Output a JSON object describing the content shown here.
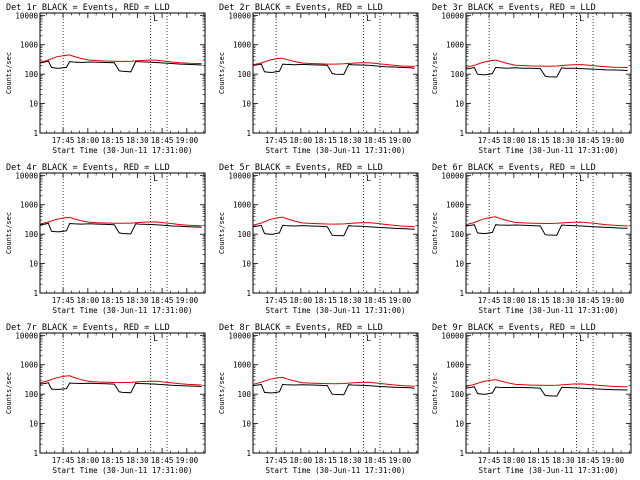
{
  "colors": {
    "events": "#000000",
    "lld": "#e00000",
    "axes": "#000000",
    "background": "#ffffff"
  },
  "shared": {
    "ylabel": "Counts/sec",
    "xlabel": "Start Time (30-Jun-11 17:31:00)",
    "y_ticks": [
      "1",
      "10",
      "100",
      "1000",
      "10000"
    ],
    "y_tick_values": [
      1,
      10,
      100,
      1000,
      10000
    ],
    "x_ticks": [
      "17:45",
      "18:00",
      "18:15",
      "18:30",
      "18:45",
      "19:00"
    ],
    "x_tick_minutes": [
      14,
      29,
      44,
      59,
      74,
      89
    ],
    "x_range_minutes": [
      0,
      100
    ],
    "y_range": [
      1,
      12000
    ],
    "y_scale": "log",
    "dotted_lines_minutes": [
      14,
      67,
      77
    ],
    "marker_label": "L",
    "marker_minute": 70
  },
  "chart_data": [
    {
      "type": "line",
      "title": "Det 1r BLACK = Events, RED = LLD",
      "series": [
        {
          "name": "Events",
          "x": [
            0,
            3,
            5,
            7,
            10,
            12,
            14,
            16,
            18,
            20,
            25,
            30,
            35,
            40,
            45,
            48,
            50,
            55,
            58,
            60,
            65,
            70,
            75,
            80,
            85,
            90,
            95,
            98
          ],
          "values": [
            240,
            260,
            280,
            170,
            160,
            160,
            165,
            170,
            270,
            260,
            250,
            260,
            255,
            250,
            245,
            130,
            125,
            120,
            270,
            265,
            260,
            250,
            240,
            230,
            220,
            215,
            210,
            205
          ]
        },
        {
          "name": "LLD",
          "x": [
            0,
            5,
            10,
            15,
            18,
            20,
            25,
            30,
            35,
            40,
            45,
            50,
            55,
            60,
            65,
            70,
            75,
            80,
            85,
            90,
            95,
            98
          ],
          "values": [
            250,
            300,
            390,
            430,
            450,
            410,
            340,
            300,
            290,
            280,
            275,
            270,
            275,
            290,
            300,
            300,
            280,
            260,
            245,
            235,
            230,
            228
          ]
        }
      ]
    },
    {
      "type": "line",
      "title": "Det 2r BLACK = Events, RED = LLD",
      "series": [
        {
          "name": "Events",
          "x": [
            0,
            3,
            5,
            7,
            10,
            12,
            14,
            16,
            18,
            20,
            25,
            30,
            35,
            40,
            45,
            48,
            50,
            55,
            58,
            60,
            65,
            70,
            75,
            80,
            85,
            90,
            95,
            98
          ],
          "values": [
            200,
            210,
            220,
            120,
            115,
            115,
            120,
            125,
            220,
            215,
            210,
            215,
            210,
            205,
            200,
            105,
            100,
            98,
            215,
            210,
            205,
            200,
            190,
            180,
            175,
            170,
            165,
            160
          ]
        },
        {
          "name": "LLD",
          "x": [
            0,
            5,
            10,
            15,
            18,
            20,
            25,
            30,
            35,
            40,
            45,
            50,
            55,
            60,
            65,
            70,
            75,
            80,
            85,
            90,
            95,
            98
          ],
          "values": [
            210,
            240,
            300,
            340,
            350,
            320,
            270,
            240,
            230,
            225,
            220,
            220,
            225,
            235,
            245,
            245,
            230,
            215,
            200,
            190,
            185,
            182
          ]
        }
      ]
    },
    {
      "type": "line",
      "title": "Det 3r BLACK = Events, RED = LLD",
      "series": [
        {
          "name": "Events",
          "x": [
            0,
            3,
            5,
            7,
            10,
            12,
            14,
            16,
            18,
            20,
            25,
            30,
            35,
            40,
            45,
            48,
            50,
            55,
            58,
            60,
            65,
            70,
            75,
            80,
            85,
            90,
            95,
            98
          ],
          "values": [
            150,
            160,
            170,
            100,
            95,
            95,
            100,
            105,
            170,
            165,
            160,
            165,
            160,
            158,
            155,
            85,
            82,
            80,
            165,
            160,
            158,
            155,
            150,
            145,
            140,
            138,
            135,
            132
          ]
        },
        {
          "name": "LLD",
          "x": [
            0,
            5,
            10,
            15,
            18,
            20,
            25,
            30,
            35,
            40,
            45,
            50,
            55,
            60,
            65,
            70,
            75,
            80,
            85,
            90,
            95,
            98
          ],
          "values": [
            170,
            200,
            250,
            290,
            300,
            280,
            230,
            200,
            195,
            190,
            188,
            186,
            190,
            200,
            210,
            212,
            200,
            188,
            178,
            172,
            170,
            168
          ]
        }
      ]
    },
    {
      "type": "line",
      "title": "Det 4r BLACK = Events, RED = LLD",
      "series": [
        {
          "name": "Events",
          "x": [
            0,
            3,
            5,
            7,
            10,
            12,
            14,
            16,
            18,
            20,
            25,
            30,
            35,
            40,
            45,
            48,
            50,
            55,
            58,
            60,
            65,
            70,
            75,
            80,
            85,
            90,
            95,
            98
          ],
          "values": [
            210,
            220,
            235,
            125,
            120,
            120,
            125,
            130,
            230,
            225,
            220,
            225,
            220,
            215,
            210,
            110,
            105,
            102,
            225,
            220,
            215,
            210,
            200,
            190,
            185,
            180,
            175,
            172
          ]
        },
        {
          "name": "LLD",
          "x": [
            0,
            5,
            10,
            15,
            18,
            20,
            25,
            30,
            35,
            40,
            45,
            50,
            55,
            60,
            65,
            70,
            75,
            80,
            85,
            90,
            95,
            98
          ],
          "values": [
            220,
            260,
            320,
            360,
            370,
            340,
            285,
            255,
            245,
            240,
            236,
            234,
            238,
            250,
            260,
            262,
            245,
            228,
            212,
            202,
            196,
            193
          ]
        }
      ]
    },
    {
      "type": "line",
      "title": "Det 5r BLACK = Events, RED = LLD",
      "series": [
        {
          "name": "Events",
          "x": [
            0,
            3,
            5,
            7,
            10,
            12,
            14,
            16,
            18,
            20,
            25,
            30,
            35,
            40,
            45,
            48,
            50,
            55,
            58,
            60,
            65,
            70,
            75,
            80,
            85,
            90,
            95,
            98
          ],
          "values": [
            180,
            190,
            200,
            105,
            100,
            100,
            105,
            110,
            200,
            195,
            190,
            195,
            190,
            185,
            180,
            92,
            90,
            88,
            195,
            190,
            185,
            180,
            172,
            165,
            160,
            155,
            150,
            148
          ]
        },
        {
          "name": "LLD",
          "x": [
            0,
            5,
            10,
            15,
            18,
            20,
            25,
            30,
            35,
            40,
            45,
            50,
            55,
            60,
            65,
            70,
            75,
            80,
            85,
            90,
            95,
            98
          ],
          "values": [
            200,
            240,
            310,
            360,
            380,
            340,
            280,
            240,
            232,
            226,
            222,
            220,
            224,
            236,
            246,
            248,
            232,
            215,
            200,
            190,
            184,
            180
          ]
        }
      ]
    },
    {
      "type": "line",
      "title": "Det 6r BLACK = Events, RED = LLD",
      "series": [
        {
          "name": "Events",
          "x": [
            0,
            3,
            5,
            7,
            10,
            12,
            14,
            16,
            18,
            20,
            25,
            30,
            35,
            40,
            45,
            48,
            50,
            55,
            58,
            60,
            65,
            70,
            75,
            80,
            85,
            90,
            95,
            98
          ],
          "values": [
            190,
            200,
            210,
            110,
            105,
            105,
            110,
            115,
            210,
            205,
            200,
            205,
            200,
            195,
            190,
            96,
            94,
            92,
            205,
            200,
            195,
            190,
            182,
            175,
            170,
            165,
            160,
            158
          ]
        },
        {
          "name": "LLD",
          "x": [
            0,
            5,
            10,
            15,
            18,
            20,
            25,
            30,
            35,
            40,
            45,
            50,
            55,
            60,
            65,
            70,
            75,
            80,
            85,
            90,
            95,
            98
          ],
          "values": [
            210,
            250,
            320,
            370,
            390,
            350,
            290,
            250,
            242,
            236,
            232,
            230,
            234,
            246,
            256,
            258,
            242,
            225,
            210,
            200,
            194,
            190
          ]
        }
      ]
    },
    {
      "type": "line",
      "title": "Det 7r BLACK = Events, RED = LLD",
      "series": [
        {
          "name": "Events",
          "x": [
            0,
            3,
            5,
            7,
            10,
            12,
            14,
            16,
            18,
            20,
            25,
            30,
            35,
            40,
            45,
            48,
            50,
            55,
            58,
            60,
            65,
            70,
            75,
            80,
            85,
            90,
            95,
            98
          ],
          "values": [
            220,
            230,
            245,
            150,
            145,
            145,
            150,
            155,
            240,
            235,
            230,
            235,
            230,
            225,
            220,
            120,
            115,
            112,
            235,
            230,
            225,
            220,
            210,
            200,
            195,
            190,
            185,
            182
          ]
        },
        {
          "name": "LLD",
          "x": [
            0,
            5,
            10,
            15,
            18,
            20,
            25,
            30,
            35,
            40,
            45,
            50,
            55,
            60,
            65,
            70,
            75,
            80,
            85,
            90,
            95,
            98
          ],
          "values": [
            240,
            290,
            360,
            410,
            420,
            380,
            310,
            270,
            260,
            255,
            250,
            248,
            252,
            265,
            275,
            277,
            260,
            242,
            225,
            215,
            208,
            205
          ]
        }
      ]
    },
    {
      "type": "line",
      "title": "Det 8r BLACK = Events, RED = LLD",
      "series": [
        {
          "name": "Events",
          "x": [
            0,
            3,
            5,
            7,
            10,
            12,
            14,
            16,
            18,
            20,
            25,
            30,
            35,
            40,
            45,
            48,
            50,
            55,
            58,
            60,
            65,
            70,
            75,
            80,
            85,
            90,
            95,
            98
          ],
          "values": [
            195,
            205,
            215,
            115,
            110,
            110,
            115,
            120,
            215,
            210,
            205,
            210,
            205,
            200,
            195,
            100,
            98,
            96,
            210,
            205,
            200,
            195,
            186,
            178,
            172,
            168,
            164,
            160
          ]
        },
        {
          "name": "LLD",
          "x": [
            0,
            5,
            10,
            15,
            18,
            20,
            25,
            30,
            35,
            40,
            45,
            50,
            55,
            60,
            65,
            70,
            75,
            80,
            85,
            90,
            95,
            98
          ],
          "values": [
            215,
            255,
            320,
            360,
            370,
            335,
            280,
            245,
            238,
            232,
            228,
            226,
            230,
            242,
            252,
            254,
            238,
            222,
            206,
            196,
            190,
            186
          ]
        }
      ]
    },
    {
      "type": "line",
      "title": "Det 9r BLACK = Events, RED = LLD",
      "series": [
        {
          "name": "Events",
          "x": [
            0,
            3,
            5,
            7,
            10,
            12,
            14,
            16,
            18,
            20,
            25,
            30,
            35,
            40,
            45,
            48,
            50,
            55,
            58,
            60,
            65,
            70,
            75,
            80,
            85,
            90,
            95,
            98
          ],
          "values": [
            160,
            170,
            180,
            105,
            100,
            100,
            105,
            110,
            175,
            170,
            168,
            170,
            168,
            165,
            160,
            90,
            88,
            86,
            170,
            168,
            165,
            160,
            155,
            150,
            145,
            142,
            140,
            138
          ]
        },
        {
          "name": "LLD",
          "x": [
            0,
            5,
            10,
            15,
            18,
            20,
            25,
            30,
            35,
            40,
            45,
            50,
            55,
            60,
            65,
            70,
            75,
            80,
            85,
            90,
            95,
            98
          ],
          "values": [
            180,
            215,
            265,
            300,
            310,
            290,
            245,
            215,
            208,
            204,
            200,
            198,
            202,
            212,
            222,
            224,
            212,
            200,
            190,
            184,
            180,
            178
          ]
        }
      ]
    }
  ]
}
